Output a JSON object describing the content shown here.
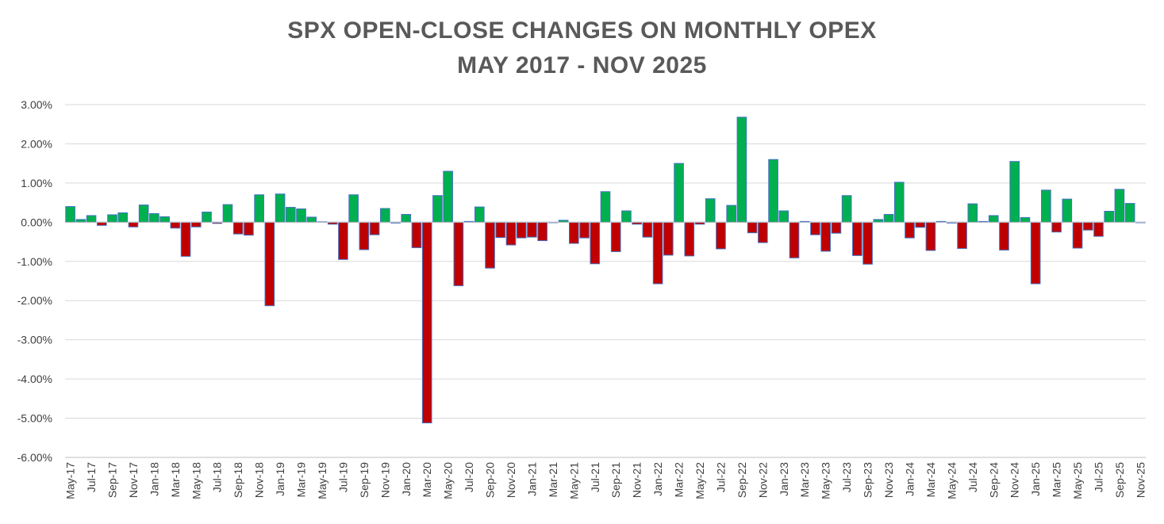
{
  "chart_data": {
    "type": "bar",
    "title": "SPX OPEN-CLOSE CHANGES ON MONTHLY OPEX",
    "subtitle": "MAY 2017 - NOV 2025",
    "xlabel": "",
    "ylabel": "",
    "ylim": [
      -6.0,
      3.0
    ],
    "yticks": [
      "3.00%",
      "2.00%",
      "1.00%",
      "0.00%",
      "-1.00%",
      "-2.00%",
      "-3.00%",
      "-4.00%",
      "-5.00%",
      "-6.00%"
    ],
    "ytick_values": [
      3,
      2,
      1,
      0,
      -1,
      -2,
      -3,
      -4,
      -5,
      -6
    ],
    "grid": true,
    "legend": "none",
    "colors": {
      "positive": "#00B050",
      "negative": "#C00000",
      "outline": "#4472C4"
    },
    "tick_every": 2,
    "categories": [
      "May-17",
      "Jun-17",
      "Jul-17",
      "Aug-17",
      "Sep-17",
      "Oct-17",
      "Nov-17",
      "Dec-17",
      "Jan-18",
      "Feb-18",
      "Mar-18",
      "Apr-18",
      "May-18",
      "Jun-18",
      "Jul-18",
      "Aug-18",
      "Sep-18",
      "Oct-18",
      "Nov-18",
      "Dec-18",
      "Jan-19",
      "Feb-19",
      "Mar-19",
      "Apr-19",
      "May-19",
      "Jun-19",
      "Jul-19",
      "Aug-19",
      "Sep-19",
      "Oct-19",
      "Nov-19",
      "Dec-19",
      "Jan-20",
      "Feb-20",
      "Mar-20",
      "Apr-20",
      "May-20",
      "Jun-20",
      "Jul-20",
      "Aug-20",
      "Sep-20",
      "Oct-20",
      "Nov-20",
      "Dec-20",
      "Jan-21",
      "Feb-21",
      "Mar-21",
      "Apr-21",
      "May-21",
      "Jun-21",
      "Jul-21",
      "Aug-21",
      "Sep-21",
      "Oct-21",
      "Nov-21",
      "Dec-21",
      "Jan-22",
      "Feb-22",
      "Mar-22",
      "Apr-22",
      "May-22",
      "Jun-22",
      "Jul-22",
      "Aug-22",
      "Sep-22",
      "Oct-22",
      "Nov-22",
      "Dec-22",
      "Jan-23",
      "Feb-23",
      "Mar-23",
      "Apr-23",
      "May-23",
      "Jun-23",
      "Jul-23",
      "Aug-23",
      "Sep-23",
      "Oct-23",
      "Nov-23",
      "Dec-23",
      "Jan-24",
      "Feb-24",
      "Mar-24",
      "Apr-24",
      "May-24",
      "Jun-24",
      "Jul-24",
      "Aug-24",
      "Sep-24",
      "Oct-24",
      "Nov-24",
      "Dec-24",
      "Jan-25",
      "Feb-25",
      "Mar-25",
      "Apr-25",
      "May-25",
      "Jun-25",
      "Jul-25",
      "Aug-25",
      "Sep-25",
      "Oct-25",
      "Nov-25"
    ],
    "values": [
      0.4,
      0.07,
      0.17,
      -0.08,
      0.19,
      0.24,
      -0.12,
      0.44,
      0.22,
      0.14,
      -0.15,
      -0.87,
      -0.12,
      0.26,
      -0.03,
      0.45,
      -0.3,
      -0.33,
      0.7,
      -2.13,
      0.72,
      0.38,
      0.34,
      0.13,
      0.01,
      -0.05,
      -0.95,
      0.7,
      -0.7,
      -0.32,
      0.35,
      -0.02,
      0.2,
      -0.65,
      -5.12,
      0.68,
      1.3,
      -1.62,
      0.02,
      0.39,
      -1.17,
      -0.39,
      -0.58,
      -0.4,
      -0.38,
      -0.47,
      -0.01,
      0.05,
      -0.54,
      -0.4,
      -1.06,
      0.78,
      -0.75,
      0.29,
      -0.05,
      -0.38,
      -1.57,
      -0.84,
      1.5,
      -0.86,
      -0.05,
      0.6,
      -0.68,
      0.43,
      2.68,
      -0.27,
      -0.52,
      1.6,
      0.29,
      -0.91,
      0.02,
      -0.32,
      -0.74,
      -0.28,
      0.68,
      -0.85,
      -1.07,
      0.07,
      0.2,
      1.02,
      -0.4,
      -0.13,
      -0.72,
      0.02,
      -0.02,
      -0.67,
      0.47,
      0.02,
      0.17,
      -0.71,
      1.55,
      0.12,
      -1.57,
      0.82,
      -0.25,
      0.59,
      -0.66,
      -0.2,
      -0.36,
      0.28,
      0.84,
      0.48,
      0.0
    ]
  }
}
